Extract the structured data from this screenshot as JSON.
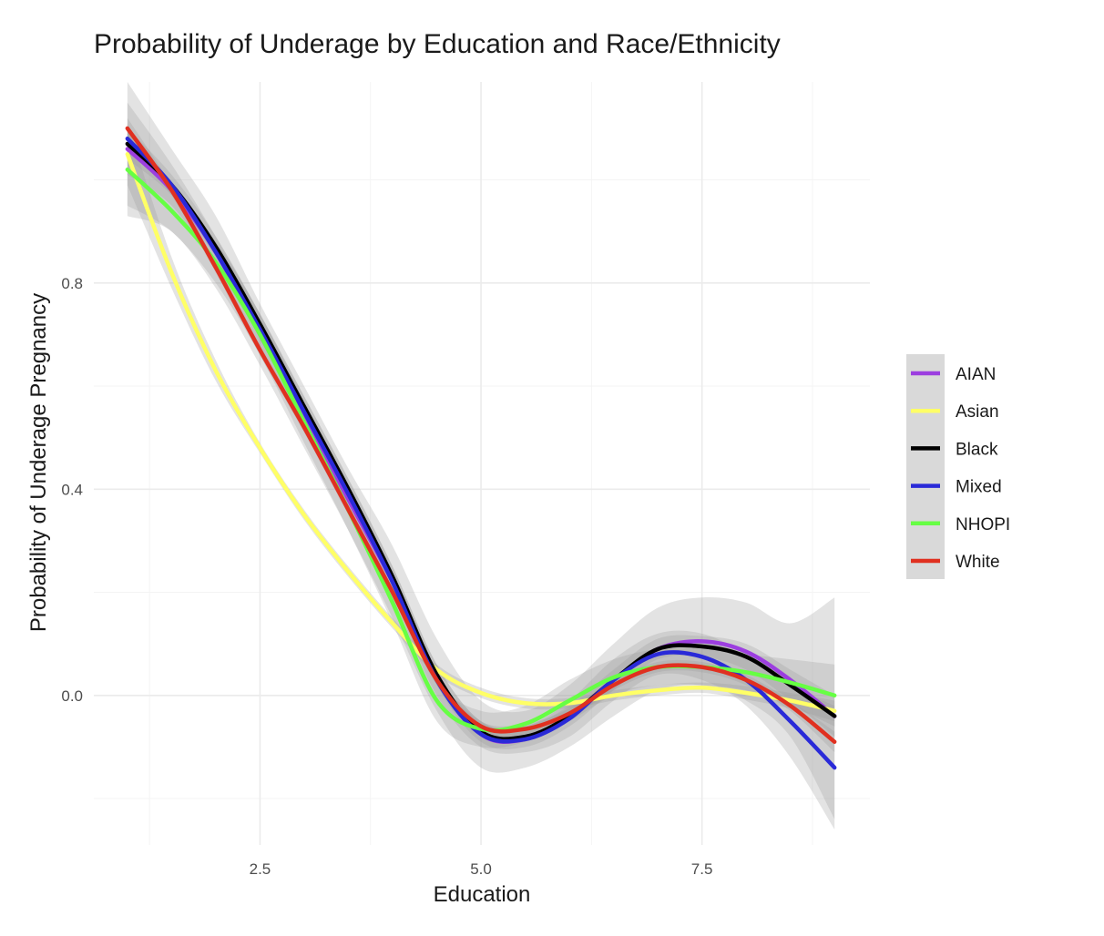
{
  "chart_data": {
    "type": "line",
    "title": "Probability of Underage by Education and Race/Ethnicity",
    "xlabel": "Education",
    "ylabel": "Probability of Underage Pregnancy",
    "xlim": [
      0.62,
      9.4
    ],
    "ylim": [
      -0.29,
      1.19
    ],
    "x_ticks": [
      2.5,
      5.0,
      7.5
    ],
    "x_tick_labels": [
      "2.5",
      "5.0",
      "7.5"
    ],
    "x_minor_ticks": [
      1.25,
      3.75,
      6.25,
      8.75
    ],
    "y_ticks": [
      0.0,
      0.4,
      0.8
    ],
    "y_tick_labels": [
      "0.0",
      "0.4",
      "0.8"
    ],
    "y_minor_ticks": [
      -0.2,
      0.2,
      0.6,
      1.0
    ],
    "grid": true,
    "legend_position": "right",
    "confidence_band_color": "#999999",
    "series": [
      {
        "name": "AIAN",
        "color": "#9c3ee0",
        "x": [
          1.0,
          1.5,
          2.0,
          2.5,
          3.0,
          3.5,
          4.0,
          4.5,
          5.0,
          5.5,
          6.0,
          6.5,
          7.0,
          7.5,
          8.0,
          8.5,
          9.0
        ],
        "y": [
          1.06,
          0.98,
          0.86,
          0.7,
          0.54,
          0.38,
          0.22,
          0.04,
          -0.075,
          -0.085,
          -0.04,
          0.03,
          0.09,
          0.105,
          0.085,
          0.03,
          -0.04
        ],
        "ci_low": [
          0.93,
          0.9,
          0.79,
          0.64,
          0.48,
          0.32,
          0.15,
          -0.03,
          -0.14,
          -0.14,
          -0.1,
          -0.04,
          0.01,
          0.02,
          -0.01,
          -0.08,
          -0.24
        ],
        "ci_high": [
          1.19,
          1.06,
          0.93,
          0.76,
          0.6,
          0.44,
          0.29,
          0.11,
          -0.01,
          -0.03,
          0.02,
          0.1,
          0.17,
          0.19,
          0.18,
          0.14,
          0.19
        ]
      },
      {
        "name": "Asian",
        "color": "#ffff66",
        "x": [
          1.0,
          1.5,
          2.0,
          2.5,
          3.0,
          3.5,
          4.0,
          4.5,
          5.0,
          5.5,
          6.0,
          6.5,
          7.0,
          7.5,
          8.0,
          8.5,
          9.0
        ],
        "y": [
          1.05,
          0.82,
          0.63,
          0.48,
          0.35,
          0.24,
          0.14,
          0.05,
          0.005,
          -0.015,
          -0.015,
          0.0,
          0.01,
          0.015,
          0.005,
          -0.01,
          -0.03
        ],
        "ci_low": [
          0.99,
          0.79,
          0.61,
          0.47,
          0.34,
          0.23,
          0.13,
          0.04,
          -0.005,
          -0.025,
          -0.025,
          -0.01,
          0.0,
          0.005,
          -0.008,
          -0.025,
          -0.05
        ],
        "ci_high": [
          1.11,
          0.85,
          0.65,
          0.49,
          0.36,
          0.25,
          0.15,
          0.06,
          0.015,
          -0.005,
          -0.005,
          0.01,
          0.02,
          0.025,
          0.018,
          0.005,
          -0.01
        ]
      },
      {
        "name": "Black",
        "color": "#000000",
        "x": [
          1.0,
          1.5,
          2.0,
          2.5,
          3.0,
          3.5,
          4.0,
          4.5,
          5.0,
          5.5,
          6.0,
          6.5,
          7.0,
          7.5,
          8.0,
          8.5,
          9.0
        ],
        "y": [
          1.07,
          0.99,
          0.87,
          0.72,
          0.56,
          0.4,
          0.23,
          0.04,
          -0.07,
          -0.08,
          -0.04,
          0.03,
          0.09,
          0.095,
          0.075,
          0.02,
          -0.04
        ],
        "ci_low": [
          1.04,
          0.97,
          0.85,
          0.7,
          0.54,
          0.38,
          0.21,
          0.02,
          -0.09,
          -0.1,
          -0.06,
          0.01,
          0.07,
          0.075,
          0.05,
          -0.01,
          -0.08
        ],
        "ci_high": [
          1.1,
          1.01,
          0.89,
          0.74,
          0.58,
          0.42,
          0.25,
          0.06,
          -0.05,
          -0.06,
          -0.02,
          0.05,
          0.11,
          0.115,
          0.1,
          0.05,
          0.0
        ]
      },
      {
        "name": "Mixed",
        "color": "#2a2ad8",
        "x": [
          1.0,
          1.5,
          2.0,
          2.5,
          3.0,
          3.5,
          4.0,
          4.5,
          5.0,
          5.5,
          6.0,
          6.5,
          7.0,
          7.5,
          8.0,
          8.5,
          9.0
        ],
        "y": [
          1.08,
          0.99,
          0.86,
          0.71,
          0.55,
          0.39,
          0.22,
          0.03,
          -0.075,
          -0.085,
          -0.045,
          0.03,
          0.08,
          0.075,
          0.03,
          -0.05,
          -0.14
        ],
        "ci_low": [
          1.01,
          0.95,
          0.83,
          0.68,
          0.52,
          0.36,
          0.19,
          0.0,
          -0.1,
          -0.11,
          -0.08,
          -0.01,
          0.04,
          0.03,
          -0.02,
          -0.12,
          -0.26
        ],
        "ci_high": [
          1.15,
          1.03,
          0.89,
          0.74,
          0.58,
          0.42,
          0.25,
          0.06,
          -0.05,
          -0.06,
          -0.01,
          0.07,
          0.12,
          0.12,
          0.08,
          0.02,
          -0.02
        ]
      },
      {
        "name": "NHOPI",
        "color": "#66ff44",
        "x": [
          1.0,
          1.5,
          2.0,
          2.5,
          3.0,
          3.5,
          4.0,
          4.5,
          5.0,
          5.5,
          6.0,
          6.5,
          7.0,
          7.5,
          8.0,
          8.5,
          9.0
        ],
        "y": [
          1.02,
          0.94,
          0.84,
          0.7,
          0.53,
          0.36,
          0.18,
          -0.01,
          -0.065,
          -0.055,
          -0.01,
          0.035,
          0.055,
          0.055,
          0.045,
          0.025,
          0.0
        ],
        "ci_low": [
          0.95,
          0.9,
          0.8,
          0.66,
          0.49,
          0.32,
          0.14,
          -0.05,
          -0.1,
          -0.09,
          -0.05,
          0.0,
          0.02,
          0.02,
          0.01,
          -0.02,
          -0.06
        ],
        "ci_high": [
          1.09,
          0.98,
          0.88,
          0.74,
          0.57,
          0.4,
          0.22,
          0.03,
          -0.03,
          -0.02,
          0.03,
          0.07,
          0.09,
          0.09,
          0.08,
          0.07,
          0.06
        ]
      },
      {
        "name": "White",
        "color": "#e03020",
        "x": [
          1.0,
          1.5,
          2.0,
          2.5,
          3.0,
          3.5,
          4.0,
          4.5,
          5.0,
          5.5,
          6.0,
          6.5,
          7.0,
          7.5,
          8.0,
          8.5,
          9.0
        ],
        "y": [
          1.1,
          0.98,
          0.83,
          0.67,
          0.52,
          0.36,
          0.2,
          0.03,
          -0.06,
          -0.065,
          -0.035,
          0.02,
          0.055,
          0.055,
          0.03,
          -0.02,
          -0.09
        ],
        "ci_low": [
          1.08,
          0.97,
          0.82,
          0.66,
          0.51,
          0.35,
          0.19,
          0.02,
          -0.07,
          -0.075,
          -0.045,
          0.01,
          0.045,
          0.045,
          0.02,
          -0.03,
          -0.11
        ],
        "ci_high": [
          1.12,
          0.99,
          0.84,
          0.68,
          0.53,
          0.37,
          0.21,
          0.04,
          -0.05,
          -0.055,
          -0.025,
          0.03,
          0.065,
          0.065,
          0.04,
          -0.01,
          -0.07
        ]
      }
    ]
  }
}
